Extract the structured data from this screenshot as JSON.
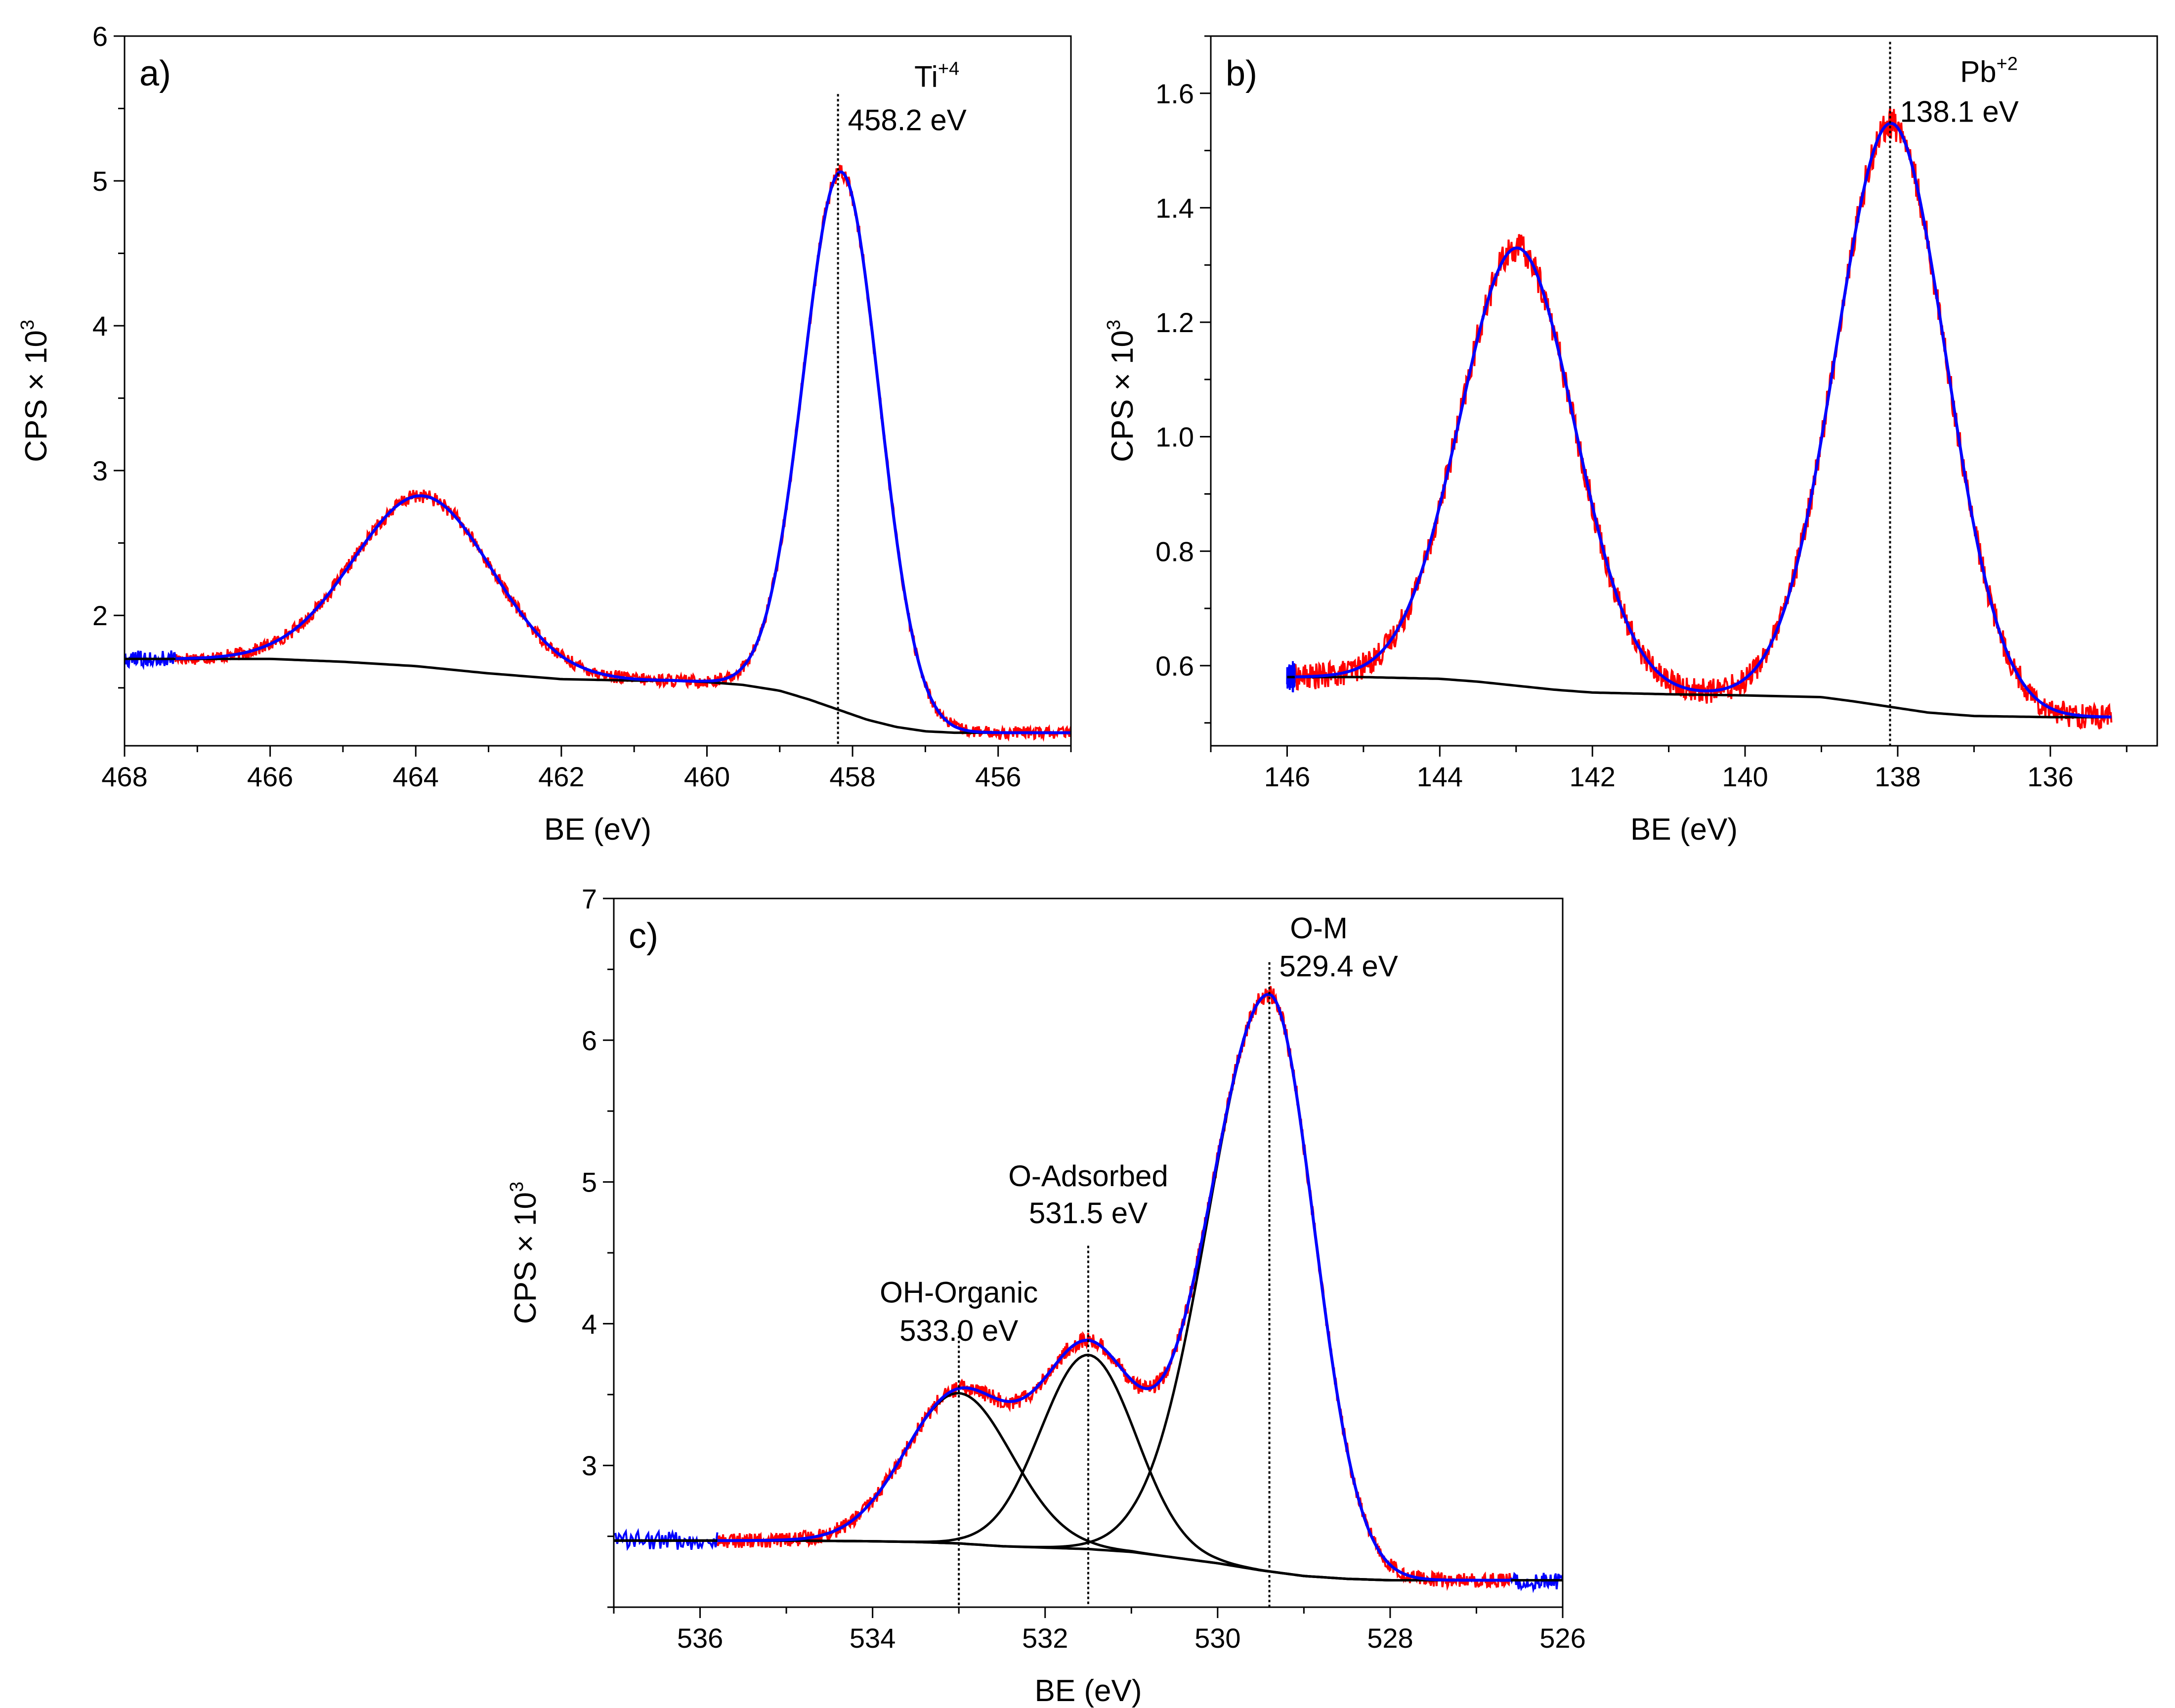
{
  "chart_data": [
    {
      "id": "a",
      "type": "line",
      "panel_label": "a)",
      "xlabel": "BE (eV)",
      "ylabel": "CPS × 10",
      "ylabel_sup": "3",
      "xlim": [
        468,
        455
      ],
      "ylim": [
        1.1,
        6.0
      ],
      "xticks": [
        468,
        466,
        464,
        462,
        460,
        458,
        456
      ],
      "yticks": [
        2,
        3,
        4,
        5,
        6
      ],
      "annotations": [
        {
          "name": "ti",
          "x": 458.2,
          "line_top": 5.6,
          "label": "Ti",
          "sup": "+4",
          "value": "458.2 eV",
          "label_y": 5.65,
          "value_y": 5.35
        }
      ],
      "baseline": {
        "name": "shirley-background",
        "x": [
          468,
          466,
          465,
          464,
          463,
          462,
          461,
          460.5,
          460,
          459.5,
          459,
          458.6,
          458.2,
          457.8,
          457.4,
          457,
          456.6,
          456,
          455
        ],
        "y": [
          1.7,
          1.7,
          1.68,
          1.65,
          1.6,
          1.56,
          1.55,
          1.55,
          1.54,
          1.52,
          1.48,
          1.42,
          1.35,
          1.28,
          1.23,
          1.2,
          1.19,
          1.19,
          1.19
        ]
      },
      "peaks": [
        {
          "center": 463.9,
          "height": 1.18,
          "sigma": 0.95
        },
        {
          "center": 458.15,
          "height": 3.72,
          "sigma": 0.52
        }
      ],
      "experimental_range": [
        467.3,
        455.0
      ],
      "fit_range": [
        468.0,
        455.0
      ],
      "noise_amplitude": 0.045
    },
    {
      "id": "b",
      "type": "line",
      "panel_label": "b)",
      "xlabel": "BE (eV)",
      "ylabel": "CPS × 10",
      "ylabel_sup": "3",
      "xlim": [
        147,
        134.6
      ],
      "ylim": [
        0.46,
        1.7
      ],
      "xticks": [
        146,
        144,
        142,
        140,
        138,
        136
      ],
      "yticks": [
        0.6,
        0.8,
        1.0,
        1.2,
        1.4,
        1.6
      ],
      "ytick_labels": [
        "0.6",
        "0.8",
        "1.0",
        "1.2",
        "1.4",
        "1.6"
      ],
      "annotations": [
        {
          "name": "pb",
          "x": 138.1,
          "line_top": 1.69,
          "label": "Pb",
          "sup": "+2",
          "value": "138.1 eV",
          "label_y": 1.62,
          "value_y": 1.55
        }
      ],
      "baseline": {
        "name": "shirley-background",
        "x": [
          146,
          145,
          144,
          143.5,
          143,
          142.5,
          142,
          141,
          140,
          139,
          138.6,
          138.1,
          137.6,
          137,
          136,
          135
        ],
        "y": [
          0.58,
          0.58,
          0.577,
          0.572,
          0.565,
          0.558,
          0.553,
          0.55,
          0.548,
          0.545,
          0.538,
          0.528,
          0.518,
          0.512,
          0.51,
          0.51
        ]
      },
      "peaks": [
        {
          "center": 142.98,
          "height": 0.765,
          "sigma": 0.75
        },
        {
          "center": 138.08,
          "height": 1.02,
          "sigma": 0.72
        }
      ],
      "experimental_range": [
        145.9,
        135.2
      ],
      "fit_range": [
        146.0,
        135.2
      ],
      "noise_amplitude": 0.022
    },
    {
      "id": "c",
      "type": "line",
      "panel_label": "c)",
      "xlabel": "BE (eV)",
      "ylabel": "CPS × 10",
      "ylabel_sup": "3",
      "xlim": [
        537,
        526
      ],
      "ylim": [
        2.0,
        7.0
      ],
      "xticks": [
        536,
        534,
        532,
        530,
        528,
        526
      ],
      "yticks": [
        3,
        4,
        5,
        6,
        7
      ],
      "annotations": [
        {
          "name": "oh-organic",
          "x": 533.0,
          "line_top": 3.95,
          "label": "OH-Organic",
          "value": "533.0 eV",
          "label_y": 4.15,
          "value_y": 3.88
        },
        {
          "name": "o-adsorbed",
          "x": 531.5,
          "line_top": 4.55,
          "label": "O-Adsorbed",
          "value": "531.5 eV",
          "label_y": 4.97,
          "value_y": 4.71
        },
        {
          "name": "o-m",
          "x": 529.4,
          "line_top": 6.55,
          "label": "O-M",
          "value": "529.4 eV",
          "label_y": 6.72,
          "value_y": 6.45
        }
      ],
      "baseline": {
        "name": "shirley-background",
        "x": [
          537,
          536,
          535,
          534,
          533.5,
          533,
          532.5,
          532,
          531.5,
          531,
          530.5,
          530,
          529.5,
          529,
          528.5,
          528,
          527,
          526
        ],
        "y": [
          2.47,
          2.47,
          2.47,
          2.465,
          2.46,
          2.45,
          2.43,
          2.42,
          2.41,
          2.39,
          2.35,
          2.31,
          2.26,
          2.22,
          2.2,
          2.19,
          2.19,
          2.19
        ]
      },
      "peaks": [
        {
          "name": "oh-organic",
          "center": 533.0,
          "height": 1.06,
          "sigma": 0.62
        },
        {
          "name": "o-adsorbed",
          "center": 531.5,
          "height": 1.37,
          "sigma": 0.55
        },
        {
          "name": "o-m",
          "center": 529.4,
          "height": 4.07,
          "sigma": 0.52,
          "tail": 1.35
        }
      ],
      "experimental_range": [
        535.8,
        526.6
      ],
      "fit_range": [
        537.0,
        526.0
      ],
      "noise_amplitude": 0.05
    }
  ],
  "colors": {
    "experimental": "#ff0000",
    "fit": "#0000ff",
    "component": "#000000",
    "baseline": "#000000"
  }
}
